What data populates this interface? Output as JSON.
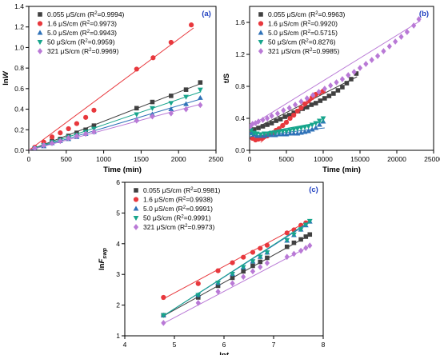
{
  "chart_data": [
    {
      "type": "scatter",
      "panel_label": "(a)",
      "xlabel": "Time (min)",
      "ylabel_main": "ln",
      "ylabel_italic": "W",
      "xlim": [
        0,
        2500
      ],
      "ylim": [
        0,
        1.4
      ],
      "xticks": [
        0,
        500,
        1000,
        1500,
        2000,
        2500
      ],
      "yticks": [
        0.0,
        0.2,
        0.4,
        0.6,
        0.8,
        1.0,
        1.2,
        1.4
      ],
      "ytick_labels": [
        "0.0",
        "0.2",
        "0.4",
        "0.6",
        "0.8",
        "1.0",
        "1.2",
        "1.4"
      ],
      "legend_position": "top-left",
      "series": [
        {
          "legend_prefix": "0.055 μS/cm (R",
          "legend_suffix": "=0.9994)",
          "color": "#404040",
          "marker": "square",
          "x": [
            80,
            200,
            310,
            420,
            530,
            640,
            760,
            870,
            1440,
            1650,
            1900,
            2100,
            2290
          ],
          "y": [
            0.02,
            0.06,
            0.09,
            0.11,
            0.14,
            0.17,
            0.2,
            0.24,
            0.41,
            0.47,
            0.53,
            0.59,
            0.66
          ],
          "fit": [
            [
              0,
              0.0
            ],
            [
              2300,
              0.65
            ]
          ]
        },
        {
          "legend_prefix": "1.6 μS/cm (R",
          "legend_suffix": "=0.9973)",
          "color": "#e8383d",
          "marker": "circle",
          "x": [
            80,
            200,
            310,
            420,
            530,
            640,
            760,
            870,
            1440,
            1660,
            1900,
            2170
          ],
          "y": [
            0.03,
            0.08,
            0.13,
            0.17,
            0.21,
            0.26,
            0.32,
            0.39,
            0.79,
            0.9,
            1.05,
            1.22
          ],
          "fit": [
            [
              0,
              0.0
            ],
            [
              2200,
              1.19
            ]
          ]
        },
        {
          "legend_prefix": "5.0 μS/cm (R",
          "legend_suffix": "=0.9943)",
          "color": "#2f72b8",
          "marker": "triangle-up",
          "x": [
            80,
            200,
            310,
            420,
            530,
            640,
            760,
            870,
            1440,
            1650,
            1900,
            2100,
            2290
          ],
          "y": [
            0.01,
            0.04,
            0.07,
            0.09,
            0.11,
            0.13,
            0.16,
            0.18,
            0.3,
            0.35,
            0.4,
            0.45,
            0.51
          ],
          "fit": [
            [
              0,
              0.0
            ],
            [
              2300,
              0.5
            ]
          ]
        },
        {
          "legend_prefix": "50 μS/cm (R",
          "legend_suffix": "=0.9959)",
          "color": "#17a58c",
          "marker": "triangle-down",
          "x": [
            80,
            200,
            310,
            420,
            530,
            640,
            760,
            870,
            1440,
            1650,
            1900,
            2100,
            2290
          ],
          "y": [
            0.02,
            0.05,
            0.08,
            0.1,
            0.13,
            0.15,
            0.18,
            0.21,
            0.35,
            0.41,
            0.46,
            0.52,
            0.59
          ],
          "fit": [
            [
              0,
              0.0
            ],
            [
              2300,
              0.57
            ]
          ]
        },
        {
          "legend_prefix": "321 μS/cm (R",
          "legend_suffix": "=0.9969)",
          "color": "#b979d6",
          "marker": "diamond",
          "x": [
            80,
            200,
            310,
            420,
            530,
            640,
            760,
            870,
            1440,
            1650,
            1900,
            2100,
            2290
          ],
          "y": [
            0.02,
            0.05,
            0.07,
            0.09,
            0.12,
            0.14,
            0.16,
            0.18,
            0.29,
            0.33,
            0.36,
            0.4,
            0.44
          ],
          "fit": [
            [
              0,
              0.0
            ],
            [
              2300,
              0.45
            ]
          ]
        }
      ]
    },
    {
      "type": "scatter",
      "panel_label": "(b)",
      "xlabel": "Time (min)",
      "ylabel_main": "t/S",
      "ylabel_italic": "",
      "xlim": [
        0,
        25000
      ],
      "ylim": [
        0,
        1.8
      ],
      "xticks": [
        0,
        5000,
        10000,
        15000,
        20000,
        25000
      ],
      "yticks": [
        0.0,
        0.4,
        0.8,
        1.2,
        1.6
      ],
      "ytick_labels": [
        "0.0",
        "0.4",
        "0.8",
        "1.2",
        "1.6"
      ],
      "legend_position": "top-left",
      "series": [
        {
          "legend_prefix": "0.055 μS/cm (R",
          "legend_suffix": "=0.9963)",
          "color": "#404040",
          "marker": "square",
          "x": [
            200,
            600,
            1200,
            1800,
            2400,
            3000,
            3600,
            4200,
            4800,
            5400,
            6000,
            6600,
            7200,
            7800,
            8400,
            9000,
            9600,
            10200,
            10800,
            11400,
            12000,
            12600,
            13200,
            13800,
            14500
          ],
          "y": [
            0.25,
            0.26,
            0.28,
            0.3,
            0.32,
            0.34,
            0.37,
            0.39,
            0.42,
            0.44,
            0.47,
            0.49,
            0.52,
            0.54,
            0.57,
            0.59,
            0.62,
            0.65,
            0.68,
            0.71,
            0.75,
            0.79,
            0.84,
            0.89,
            0.96
          ],
          "fit": [
            [
              0,
              0.24
            ],
            [
              14600,
              0.92
            ]
          ]
        },
        {
          "legend_prefix": "1.6 μS/cm (R",
          "legend_suffix": "=0.9920)",
          "color": "#e8383d",
          "marker": "circle",
          "x": [
            100,
            400,
            800,
            1200,
            1600,
            2000,
            2400,
            2800,
            3200,
            3600,
            4000,
            4500,
            5000,
            5500,
            6000,
            6500,
            7000,
            7500,
            8000,
            8500,
            9000,
            9500,
            10000
          ],
          "y": [
            0.23,
            0.15,
            0.13,
            0.14,
            0.15,
            0.17,
            0.18,
            0.2,
            0.22,
            0.25,
            0.27,
            0.31,
            0.35,
            0.4,
            0.44,
            0.49,
            0.53,
            0.58,
            0.62,
            0.66,
            0.7,
            0.72,
            0.74
          ],
          "fit": [
            [
              1500,
              0.1
            ],
            [
              10200,
              0.76
            ]
          ]
        },
        {
          "legend_prefix": "5.0 μS/cm (R",
          "legend_suffix": "=0.5715)",
          "color": "#2f72b8",
          "marker": "triangle-up",
          "x": [
            200,
            600,
            1000,
            1500,
            2000,
            2500,
            3000,
            3500,
            4000,
            4500,
            5000,
            5500,
            6000,
            6500,
            7000,
            7500,
            8000,
            8500,
            9000,
            9500,
            10000
          ],
          "y": [
            0.22,
            0.2,
            0.18,
            0.18,
            0.18,
            0.19,
            0.19,
            0.19,
            0.2,
            0.2,
            0.2,
            0.21,
            0.21,
            0.21,
            0.22,
            0.23,
            0.24,
            0.26,
            0.28,
            0.32,
            0.36
          ],
          "fit": [
            [
              0,
              0.17
            ],
            [
              10200,
              0.28
            ]
          ]
        },
        {
          "legend_prefix": "50 μS/cm (R",
          "legend_suffix": "=0.8276)",
          "color": "#17a58c",
          "marker": "triangle-down",
          "x": [
            200,
            600,
            1000,
            1500,
            2000,
            2500,
            3000,
            3500,
            4000,
            4500,
            5000,
            5500,
            6000,
            6500,
            7000,
            7500,
            8000,
            8500,
            9000,
            9500,
            10000
          ],
          "y": [
            0.25,
            0.22,
            0.21,
            0.2,
            0.21,
            0.21,
            0.22,
            0.22,
            0.23,
            0.24,
            0.24,
            0.25,
            0.26,
            0.27,
            0.28,
            0.29,
            0.3,
            0.32,
            0.34,
            0.37,
            0.4
          ],
          "fit": [
            [
              0,
              0.19
            ],
            [
              10200,
              0.36
            ]
          ]
        },
        {
          "legend_prefix": "321 μS/cm (R",
          "legend_suffix": "=0.9985)",
          "color": "#b979d6",
          "marker": "diamond",
          "x": [
            100,
            400,
            800,
            1200,
            1800,
            2400,
            3000,
            3800,
            4600,
            5400,
            6200,
            7000,
            7800,
            8600,
            9400,
            10200,
            11000,
            11800,
            12600,
            13400,
            14200,
            15000,
            15800,
            16600,
            17400,
            18200,
            19000,
            19800,
            20600,
            21400,
            22300,
            23000
          ],
          "y": [
            0.3,
            0.33,
            0.34,
            0.36,
            0.38,
            0.4,
            0.43,
            0.46,
            0.5,
            0.53,
            0.57,
            0.61,
            0.65,
            0.69,
            0.73,
            0.77,
            0.81,
            0.85,
            0.89,
            0.94,
            0.98,
            1.03,
            1.08,
            1.13,
            1.18,
            1.24,
            1.3,
            1.36,
            1.42,
            1.48,
            1.56,
            1.64
          ],
          "fit": [
            [
              0,
              0.3
            ],
            [
              23200,
              1.62
            ]
          ]
        }
      ]
    },
    {
      "type": "scatter",
      "panel_label": "(c)",
      "xlabel_main": "ln",
      "xlabel_italic": "t",
      "ylabel_main": "ln",
      "ylabel_italic": "F",
      "ylabel_sub": "swp",
      "xlim": [
        4,
        8
      ],
      "ylim": [
        1,
        6
      ],
      "xticks": [
        4,
        5,
        6,
        7,
        8
      ],
      "yticks": [
        1,
        2,
        3,
        4,
        5,
        6
      ],
      "ytick_labels": [
        "1",
        "2",
        "3",
        "4",
        "5",
        "6"
      ],
      "legend_position": "top-left",
      "series": [
        {
          "legend_prefix": "0.055 μS/cm (R",
          "legend_suffix": "=0.9981)",
          "color": "#404040",
          "marker": "square",
          "x": [
            4.78,
            5.48,
            5.88,
            6.17,
            6.39,
            6.58,
            6.73,
            6.87,
            7.27,
            7.41,
            7.55,
            7.65,
            7.73
          ],
          "y": [
            1.67,
            2.25,
            2.63,
            2.89,
            3.1,
            3.28,
            3.41,
            3.54,
            3.9,
            4.03,
            4.14,
            4.23,
            4.3
          ],
          "fit": [
            [
              4.75,
              1.62
            ],
            [
              7.75,
              4.3
            ]
          ]
        },
        {
          "legend_prefix": "1.6 μS/cm (R",
          "legend_suffix": "=0.9938)",
          "color": "#e8383d",
          "marker": "circle",
          "x": [
            4.78,
            5.48,
            5.88,
            6.17,
            6.39,
            6.58,
            6.73,
            6.87,
            7.27,
            7.41,
            7.55,
            7.65
          ],
          "y": [
            2.25,
            2.7,
            3.12,
            3.38,
            3.56,
            3.72,
            3.85,
            3.95,
            4.35,
            4.45,
            4.6,
            4.68
          ],
          "fit": [
            [
              4.75,
              2.18
            ],
            [
              7.75,
              4.78
            ]
          ]
        },
        {
          "legend_prefix": "5.0 μS/cm (R",
          "legend_suffix": "=0.9991)",
          "color": "#2f72b8",
          "marker": "triangle-up",
          "x": [
            4.78,
            5.48,
            5.88,
            6.17,
            6.39,
            6.58,
            6.73,
            6.87,
            7.27,
            7.41,
            7.55,
            7.65,
            7.73
          ],
          "y": [
            1.67,
            2.33,
            2.72,
            3.01,
            3.23,
            3.42,
            3.57,
            3.71,
            4.1,
            4.28,
            4.46,
            4.6,
            4.72
          ],
          "fit": [
            [
              4.75,
              1.62
            ],
            [
              7.75,
              4.72
            ]
          ]
        },
        {
          "legend_prefix": "50 μS/cm (R",
          "legend_suffix": "=0.9991)",
          "color": "#17a58c",
          "marker": "triangle-down",
          "x": [
            4.78,
            5.48,
            5.88,
            6.17,
            6.39,
            6.58,
            6.73,
            6.87,
            7.27,
            7.41,
            7.55,
            7.65,
            7.73
          ],
          "y": [
            1.67,
            2.33,
            2.73,
            3.02,
            3.24,
            3.43,
            3.58,
            3.72,
            4.12,
            4.3,
            4.47,
            4.62,
            4.74
          ],
          "fit": [
            [
              4.75,
              1.62
            ],
            [
              7.75,
              4.75
            ]
          ]
        },
        {
          "legend_prefix": "321 μS/cm (R",
          "legend_suffix": "=0.9973)",
          "color": "#b979d6",
          "marker": "diamond",
          "x": [
            4.78,
            5.48,
            5.88,
            6.17,
            6.39,
            6.58,
            6.73,
            6.87,
            7.27,
            7.41,
            7.55,
            7.65,
            7.73
          ],
          "y": [
            1.42,
            2.07,
            2.44,
            2.71,
            2.92,
            3.1,
            3.24,
            3.37,
            3.57,
            3.67,
            3.77,
            3.86,
            3.94
          ],
          "fit": [
            [
              4.75,
              1.38
            ],
            [
              7.75,
              3.94
            ]
          ]
        }
      ]
    }
  ]
}
